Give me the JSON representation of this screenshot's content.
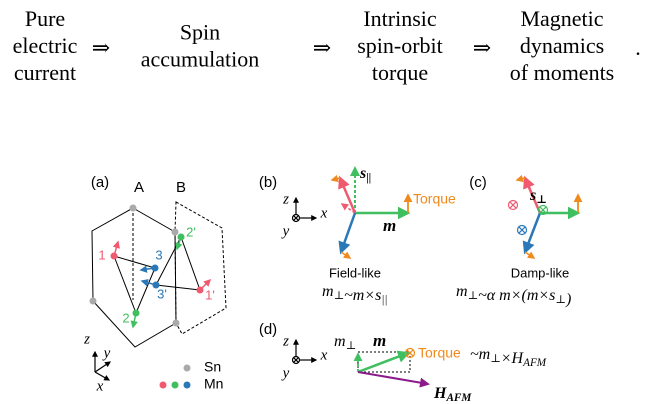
{
  "flow": {
    "steps": [
      {
        "lines": [
          "Pure",
          "electric",
          "current"
        ]
      },
      {
        "lines": [
          "Spin",
          "accumulation"
        ]
      },
      {
        "lines": [
          "Intrinsic",
          "spin-orbit",
          "torque"
        ]
      },
      {
        "lines": [
          "Magnetic",
          "dynamics",
          "of moments"
        ]
      }
    ],
    "arrow": "⇒",
    "end": "."
  },
  "panel_a": {
    "label": "(a)",
    "cell_a": "A",
    "cell_b": "B",
    "sites": [
      "1",
      "2",
      "3",
      "1'",
      "2'",
      "3'"
    ],
    "axes": {
      "z": "z",
      "y": "y",
      "x": "x"
    },
    "legend": [
      "Sn",
      "Mn"
    ]
  },
  "panel_b": {
    "label": "(b)",
    "axes": {
      "z": "z",
      "x": "x",
      "y": "y"
    },
    "spin": [
      {
        "t": "s",
        "sub": "||"
      }
    ],
    "torque": "Torque",
    "moment": [
      {
        "t": "m"
      }
    ],
    "caption": "Field-like",
    "formula": [
      {
        "t": "m",
        "sub": "⊥"
      },
      {
        "t": "~m×s",
        "sub": "||"
      }
    ]
  },
  "panel_c": {
    "label": "(c)",
    "spin": [
      {
        "t": "s",
        "sub": "⊥"
      }
    ],
    "caption": "Damp-like",
    "formula": [
      {
        "t": "m",
        "sub": "⊥"
      },
      {
        "t": "~α m×(m×s",
        "sub": "⊥"
      },
      {
        "t": ")"
      }
    ]
  },
  "panel_d": {
    "label": "(d)",
    "axes": {
      "z": "z",
      "x": "x",
      "y": "y"
    },
    "m_perp": [
      {
        "t": "m",
        "sub": "⊥"
      }
    ],
    "moment": [
      {
        "t": "m"
      }
    ],
    "torque": "Torque",
    "torque_formula": [
      {
        "t": "~m",
        "sub": "⊥"
      },
      {
        "t": "×H",
        "sub": "AFM"
      }
    ],
    "field": [
      {
        "t": "H",
        "sub": "AFM"
      }
    ]
  }
}
